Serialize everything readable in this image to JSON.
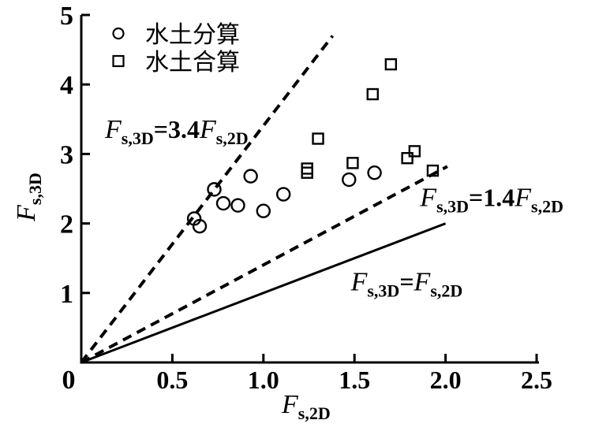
{
  "chart_data": {
    "type": "scatter",
    "title": "",
    "xlabel_parts": [
      [
        "i",
        "F"
      ],
      [
        "sub",
        "s,2D"
      ]
    ],
    "ylabel_parts": [
      [
        "i",
        "F"
      ],
      [
        "sub",
        "s,3D"
      ]
    ],
    "xlim": [
      0,
      2.5
    ],
    "ylim": [
      0,
      5
    ],
    "grid": false,
    "origin_label": "0",
    "xticks": {
      "values": [
        0.5,
        1.0,
        1.5,
        2.0,
        2.5
      ],
      "labels": [
        "0.5",
        "1.0",
        "1.5",
        "2.0",
        "2.5"
      ]
    },
    "yticks": {
      "values": [
        1,
        2,
        3,
        4,
        5
      ],
      "labels": [
        "1",
        "2",
        "3",
        "4",
        "5"
      ]
    },
    "legend": {
      "position": "upper-left-inside",
      "entries": [
        {
          "marker": "circle",
          "label": "水土分算"
        },
        {
          "marker": "square",
          "label": "水土合算"
        }
      ]
    },
    "series": [
      {
        "name": "水土分算",
        "marker": "circle",
        "points": [
          [
            0.62,
            2.07
          ],
          [
            0.65,
            1.96
          ],
          [
            0.73,
            2.49
          ],
          [
            0.78,
            2.29
          ],
          [
            0.86,
            2.26
          ],
          [
            0.93,
            2.68
          ],
          [
            1.0,
            2.18
          ],
          [
            1.11,
            2.42
          ],
          [
            1.47,
            2.63
          ],
          [
            1.61,
            2.73
          ]
        ]
      },
      {
        "name": "水土合算",
        "marker": "square",
        "points": [
          [
            1.24,
            2.79
          ],
          [
            1.24,
            2.73
          ],
          [
            1.3,
            3.22
          ],
          [
            1.49,
            2.87
          ],
          [
            1.6,
            3.86
          ],
          [
            1.7,
            4.29
          ],
          [
            1.79,
            2.94
          ],
          [
            1.83,
            3.04
          ],
          [
            1.93,
            2.76
          ]
        ]
      }
    ],
    "ref_lines": [
      {
        "id": "line-3p4",
        "equation": "Fs,3D=3.4Fs,2D",
        "slope": 3.4,
        "dashed": true,
        "from": [
          0,
          0
        ],
        "to": [
          1.38,
          4.7
        ],
        "label_parts": [
          [
            "i",
            "F"
          ],
          [
            "sub",
            "s,3D"
          ],
          [
            "b",
            "=3.4"
          ],
          [
            "i",
            "F"
          ],
          [
            "sub",
            "s,2D"
          ]
        ],
        "label_pos": {
          "x": 0.13,
          "y": 3.23
        }
      },
      {
        "id": "line-1p4",
        "equation": "Fs,3D=1.4Fs,2D",
        "slope": 1.4,
        "dashed": true,
        "from": [
          0,
          0
        ],
        "to": [
          2.01,
          2.82
        ],
        "label_parts": [
          [
            "i",
            "F"
          ],
          [
            "sub",
            "s,3D"
          ],
          [
            "b",
            "=1.4"
          ],
          [
            "i",
            "F"
          ],
          [
            "sub",
            "s,2D"
          ]
        ],
        "label_pos": {
          "x": 1.86,
          "y": 2.25
        }
      },
      {
        "id": "line-identity",
        "equation": "Fs,3D=Fs,2D",
        "slope": 1.0,
        "dashed": false,
        "from": [
          0,
          0
        ],
        "to": [
          2.0,
          2.0
        ],
        "label_parts": [
          [
            "i",
            "F"
          ],
          [
            "sub",
            "s,3D"
          ],
          [
            "b",
            "="
          ],
          [
            "i",
            "F"
          ],
          [
            "sub",
            "s,2D"
          ]
        ],
        "label_pos": {
          "x": 1.48,
          "y": 1.04
        }
      }
    ],
    "colors": {
      "ink": "#000000",
      "background": "#ffffff"
    }
  }
}
